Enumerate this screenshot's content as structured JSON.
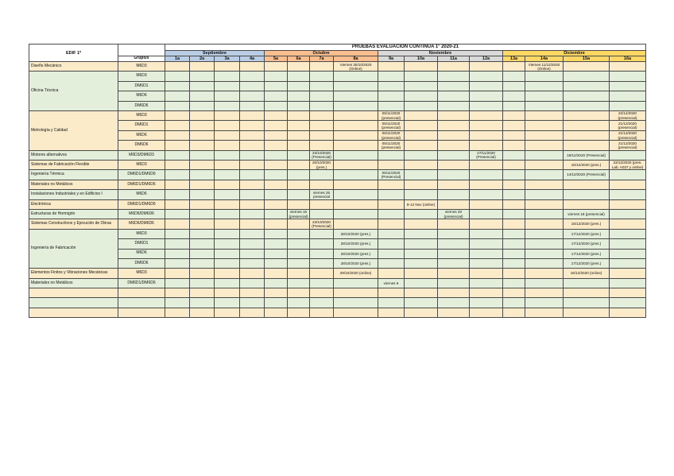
{
  "page": {
    "title": "PRUEBAS EVALUACIÓN CONTINUA 1º 2020-21",
    "corner_label": "EDIF 1º",
    "group_column_header": "Grupo/s"
  },
  "colors": {
    "september": "#B9CDE5",
    "october": "#FBBE8E",
    "november": "#D9D9D9",
    "december": "#FFD863",
    "band_yellow": "#FBEBC8",
    "band_green": "#E3EFDB",
    "grid": "#4a4a4a"
  },
  "months": [
    {
      "label": "Septiembre",
      "color_key": "september",
      "weeks": [
        "1a",
        "2a",
        "3a",
        "4a"
      ]
    },
    {
      "label": "Octubre",
      "color_key": "october",
      "weeks": [
        "5a",
        "6a",
        "7a",
        "8a"
      ]
    },
    {
      "label": "Noviembre",
      "color_key": "november",
      "weeks": [
        "9a",
        "10a",
        "11a",
        "12a"
      ]
    },
    {
      "label": "Diciembre",
      "color_key": "december",
      "weeks": [
        "13a",
        "14a",
        "15a",
        "16a"
      ]
    }
  ],
  "rows": [
    {
      "subject": "Diseño Mecánico",
      "rowspan": 1,
      "band": "yellow",
      "group": "M6D3",
      "cells": {
        "8": "Viernes 30/10/2020 (Online)",
        "14": "Viernes 11/12/2020 (Online)"
      }
    },
    {
      "subject": "Oficina Técnica",
      "rowspan": 4,
      "band": "green",
      "group": "M6D3",
      "cells": {}
    },
    {
      "band": "green",
      "group": "DM6D1",
      "cells": {}
    },
    {
      "band": "green",
      "group": "M6D6",
      "cells": {}
    },
    {
      "band": "green",
      "group": "DM6D6",
      "cells": {}
    },
    {
      "subject": "Metrología y Calidad",
      "rowspan": 4,
      "band": "yellow",
      "group": "M6D3",
      "cells": {
        "9": "05/11/2020 (presencial)",
        "16": "22/12/2020 (presencial)"
      }
    },
    {
      "band": "yellow",
      "group": "DM6D1",
      "cells": {
        "9": "05/11/2020 (presencial)",
        "16": "21/12/2020 (presencial)"
      }
    },
    {
      "band": "yellow",
      "group": "M6D6",
      "cells": {
        "9": "05/11/2020 (presencial)",
        "16": "21/12/2020 (presencial)"
      }
    },
    {
      "band": "yellow",
      "group": "DM6D6",
      "cells": {
        "9": "05/11/2020 (presencial)",
        "16": "21/12/2020 (presencial)"
      }
    },
    {
      "subject": "Motores alternativos",
      "rowspan": 1,
      "band": "green",
      "group": "M6D3/DM6D3",
      "cells": {
        "7": "23/10/2020 (Presencial)",
        "12": "27/11/2020 (Presencial)",
        "15": "18/12/2020 (Presencial)"
      }
    },
    {
      "subject": "Sistemas de Fabricación Flexible",
      "rowspan": 1,
      "band": "yellow",
      "group": "M6D3",
      "cells": {
        "7": "20/10/2020 (pres.)",
        "15": "15/12/2020 (pres.)",
        "16": "23/12/2020 (pres. Lab. A037 y online)"
      }
    },
    {
      "subject": "Ingeniería Térmica",
      "rowspan": 1,
      "band": "green",
      "group": "DM6D1/DM6D6",
      "cells": {
        "9": "05/11/2020 (Presencial)",
        "15": "14/12/2020 (Presencial)"
      }
    },
    {
      "subject": "Materiales no Metálicos",
      "rowspan": 1,
      "band": "yellow",
      "group": "DM6D1/DM6D6",
      "cells": {}
    },
    {
      "subject": "Instalaciones Industriales y en Edificios I",
      "rowspan": 1,
      "band": "green",
      "group": "M6D6",
      "cells": {
        "7": "viernes 26 presencial"
      }
    },
    {
      "subject": "Electrónica",
      "rowspan": 1,
      "band": "yellow",
      "group": "DM6D1/DM6D6",
      "cells": {
        "10": "9-13 Nov (online)"
      }
    },
    {
      "subject": "Estructuras de Hormigón",
      "rowspan": 1,
      "band": "green",
      "group": "M6D6/DM6D6",
      "cells": {
        "6": "viernes 16 (presencial)",
        "11": "viernes 20 (presencial)",
        "15": "viernes 18 (presencial)"
      }
    },
    {
      "subject": "Sistemas Constructivos y Ejecución de Obras",
      "rowspan": 1,
      "band": "yellow",
      "group": "M6D6/DM6D6",
      "cells": {
        "7": "23/10/2020 (Presencial)",
        "15": "15/12/2020 (pres.)"
      }
    },
    {
      "subject": "Ingeniería de Fabricación",
      "rowspan": 4,
      "band": "green",
      "group": "M6D3",
      "cells": {
        "8": "28/10/2020 (pres.)",
        "15": "17/12/2020 (pres.)"
      }
    },
    {
      "band": "green",
      "group": "DM6D1",
      "cells": {
        "8": "28/10/2020 (pres.)",
        "15": "17/12/2020 (pres.)"
      }
    },
    {
      "band": "green",
      "group": "M6D6",
      "cells": {
        "8": "28/10/2020 (pres.)",
        "15": "17/12/2020 (pres.)"
      }
    },
    {
      "band": "green",
      "group": "DM6D6",
      "cells": {
        "8": "28/10/2020 (pres.)",
        "15": "17/12/2020 (pres.)"
      }
    },
    {
      "subject": "Elementos Finitos y Vibraciones Mecánicas",
      "rowspan": 1,
      "band": "yellow",
      "group": "M6D3",
      "cells": {
        "8": "29/10/2020 (online)",
        "15": "16/12/2020 (online)"
      }
    },
    {
      "subject": "Materiales no Metálicos",
      "rowspan": 1,
      "band": "green",
      "group": "DM6D1/DM6D6",
      "cells": {
        "9": "viernes 6"
      }
    },
    {
      "subject": "",
      "rowspan": 1,
      "band": "yellow",
      "group": "",
      "cells": {}
    },
    {
      "subject": "",
      "rowspan": 1,
      "band": "green",
      "group": "",
      "cells": {}
    },
    {
      "subject": "",
      "rowspan": 1,
      "band": "yellow",
      "group": "",
      "cells": {}
    }
  ]
}
